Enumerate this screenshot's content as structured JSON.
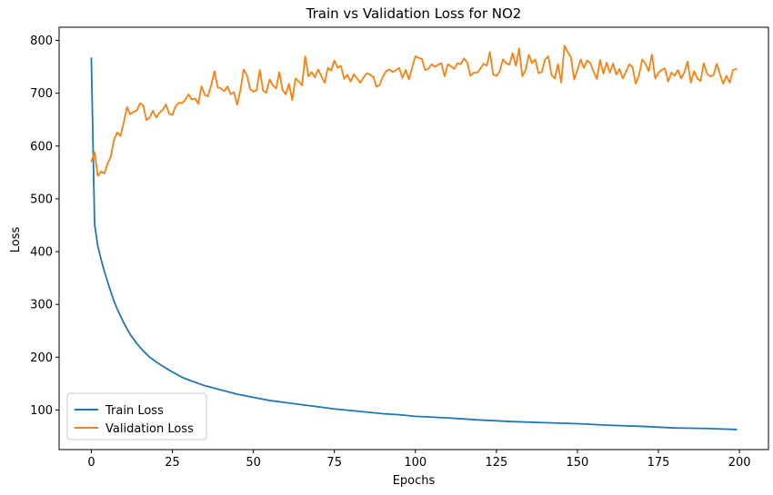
{
  "chart_data": {
    "type": "line",
    "title": "Train vs Validation Loss for NO2",
    "xlabel": "Epochs",
    "ylabel": "Loss",
    "xlim": [
      -9.95,
      208.95
    ],
    "ylim": [
      25,
      825
    ],
    "xticks": [
      0,
      25,
      50,
      75,
      100,
      125,
      150,
      175,
      200
    ],
    "yticks": [
      100,
      200,
      300,
      400,
      500,
      600,
      700,
      800
    ],
    "grid": false,
    "legend_position": "lower-left",
    "series": [
      {
        "name": "Train Loss",
        "color": "#1f77b4",
        "x": [
          0,
          1,
          2,
          3,
          4,
          5,
          6,
          7,
          8,
          10,
          12,
          14,
          16,
          18,
          20,
          22,
          25,
          28,
          30,
          35,
          40,
          45,
          50,
          55,
          60,
          65,
          70,
          75,
          80,
          85,
          90,
          95,
          100,
          110,
          120,
          130,
          140,
          150,
          160,
          170,
          180,
          190,
          199
        ],
        "y": [
          766,
          452,
          410,
          385,
          363,
          343,
          324,
          306,
          291,
          265,
          243,
          226,
          212,
          200,
          191,
          183,
          172,
          162,
          157,
          146,
          138,
          130,
          124,
          118,
          114,
          110,
          106,
          102,
          99,
          96,
          93,
          91,
          88,
          85,
          81,
          78,
          76,
          74,
          71,
          69,
          66,
          65,
          63
        ]
      },
      {
        "name": "Validation Loss",
        "color": "#ff7f0e",
        "x": [
          0,
          1,
          2,
          3,
          4,
          5,
          6,
          7,
          8,
          9,
          10,
          11,
          12,
          13,
          14,
          15,
          16,
          17,
          18,
          19,
          20,
          21,
          22,
          23,
          24,
          25,
          26,
          27,
          28,
          29,
          30,
          31,
          32,
          33,
          34,
          35,
          36,
          37,
          38,
          39,
          40,
          41,
          42,
          43,
          44,
          45,
          46,
          47,
          48,
          49,
          50,
          51,
          52,
          53,
          54,
          55,
          56,
          57,
          58,
          59,
          60,
          61,
          62,
          63,
          64,
          65,
          66,
          67,
          68,
          69,
          70,
          71,
          72,
          73,
          74,
          75,
          76,
          77,
          78,
          79,
          80,
          81,
          82,
          83,
          84,
          85,
          86,
          87,
          88,
          89,
          90,
          91,
          92,
          93,
          94,
          95,
          96,
          97,
          98,
          99,
          100,
          101,
          102,
          103,
          104,
          105,
          106,
          107,
          108,
          109,
          110,
          111,
          112,
          113,
          114,
          115,
          116,
          117,
          118,
          119,
          120,
          121,
          122,
          123,
          124,
          125,
          126,
          127,
          128,
          129,
          130,
          131,
          132,
          133,
          134,
          135,
          136,
          137,
          138,
          139,
          140,
          141,
          142,
          143,
          144,
          145,
          146,
          147,
          148,
          149,
          150,
          151,
          152,
          153,
          154,
          155,
          156,
          157,
          158,
          159,
          160,
          161,
          162,
          163,
          164,
          165,
          166,
          167,
          168,
          169,
          170,
          171,
          172,
          173,
          174,
          175,
          176,
          177,
          178,
          179,
          180,
          181,
          182,
          183,
          184,
          185,
          186,
          187,
          188,
          189,
          190,
          191,
          192,
          193,
          194,
          195,
          196,
          197,
          198,
          199
        ],
        "y": [
          571,
          588,
          543,
          552,
          548,
          566,
          580,
          612,
          626,
          619,
          645,
          674,
          660,
          665,
          667,
          681,
          677,
          649,
          654,
          667,
          654,
          663,
          668,
          679,
          661,
          659,
          675,
          682,
          681,
          688,
          698,
          688,
          690,
          680,
          713,
          697,
          694,
          716,
          742,
          711,
          709,
          704,
          713,
          698,
          702,
          678,
          706,
          745,
          734,
          708,
          703,
          706,
          744,
          705,
          701,
          726,
          715,
          709,
          740,
          706,
          698,
          718,
          687,
          728,
          722,
          715,
          770,
          732,
          740,
          730,
          745,
          732,
          720,
          748,
          743,
          762,
          748,
          752,
          727,
          735,
          722,
          736,
          728,
          720,
          730,
          738,
          735,
          731,
          712,
          716,
          732,
          742,
          745,
          740,
          744,
          748,
          729,
          744,
          726,
          749,
          770,
          767,
          765,
          744,
          746,
          755,
          750,
          754,
          757,
          732,
          755,
          751,
          746,
          757,
          755,
          766,
          758,
          733,
          739,
          739,
          746,
          756,
          752,
          778,
          735,
          733,
          741,
          764,
          757,
          754,
          776,
          752,
          785,
          732,
          744,
          773,
          757,
          764,
          738,
          740,
          764,
          770,
          735,
          728,
          755,
          720,
          790,
          778,
          768,
          726,
          744,
          764,
          748,
          762,
          757,
          741,
          727,
          763,
          737,
          758,
          739,
          756,
          735,
          746,
          728,
          741,
          755,
          750,
          718,
          734,
          764,
          756,
          742,
          773,
          728,
          739,
          744,
          747,
          722,
          739,
          733,
          744,
          728,
          740,
          760,
          720,
          742,
          728,
          723,
          757,
          737,
          732,
          734,
          756,
          736,
          718,
          733,
          720,
          744,
          746
        ]
      }
    ]
  }
}
